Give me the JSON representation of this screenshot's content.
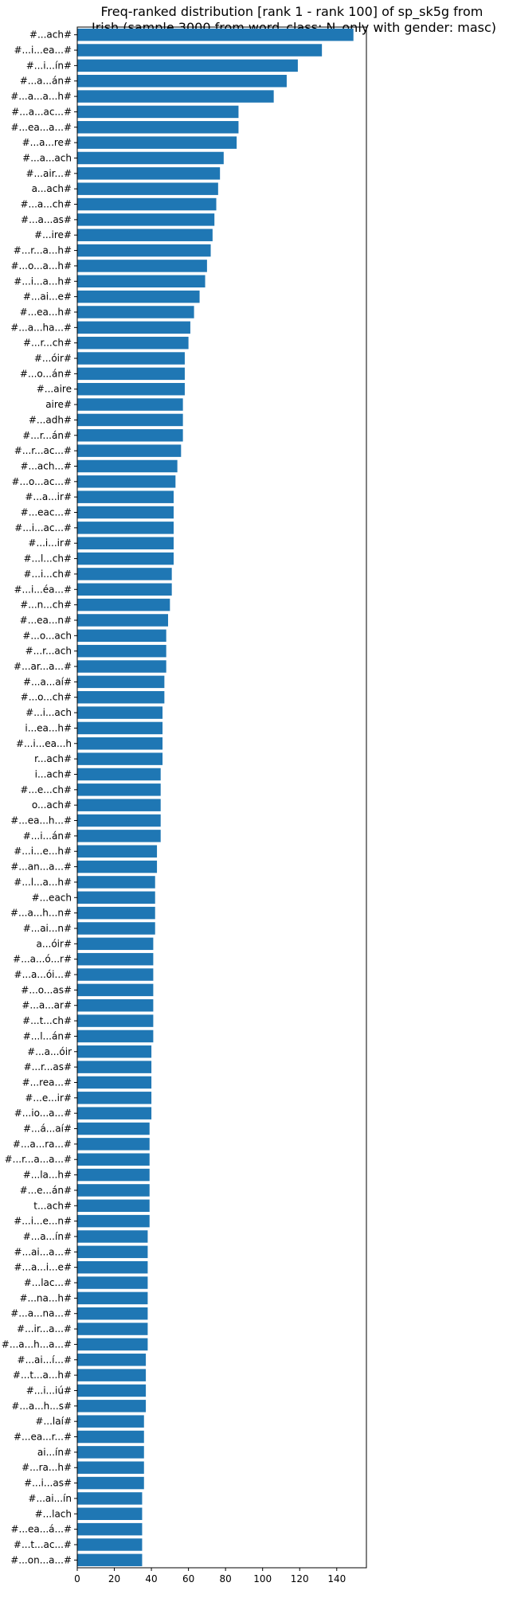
{
  "chart_data": {
    "type": "bar",
    "orientation": "horizontal",
    "title": "Freq-ranked distribution [rank 1 - rank 100] of sp_sk5g from Irish (sample 3000 from word_class: N_only with gender: masc)",
    "title_lines": [
      "Freq-ranked distribution [rank 1 - rank 100] of sp_sk5g from",
      "Irish (sample 3000 from word_class: N_only with gender: masc)"
    ],
    "xlabel": "",
    "ylabel": "",
    "xlim": [
      0,
      156
    ],
    "xticks": [
      0,
      20,
      40,
      60,
      80,
      100,
      120,
      140
    ],
    "grid": false,
    "bar_color": "#1f77b4",
    "categories": [
      "#...ach#",
      "#...i...ea...#",
      "#...i...ín#",
      "#...a...án#",
      "#...a...a...h#",
      "#...a...ac...#",
      "#...ea...a...#",
      "#...a...re#",
      "#...a...ach",
      "#...air...#",
      "a...ach#",
      "#...a...ch#",
      "#...a...as#",
      "#...ire#",
      "#...r...a...h#",
      "#...o...a...h#",
      "#...i...a...h#",
      "#...ai...e#",
      "#...ea...h#",
      "#...a...ha...#",
      "#...r...ch#",
      "#...óir#",
      "#...o...án#",
      "#...aire",
      "aire#",
      "#...adh#",
      "#...r...án#",
      "#...r...ac...#",
      "#...ach...#",
      "#...o...ac...#",
      "#...a...ir#",
      "#...eac...#",
      "#...i...ac...#",
      "#...i...ir#",
      "#...l...ch#",
      "#...i...ch#",
      "#...i...éa...#",
      "#...n...ch#",
      "#...ea...n#",
      "#...o...ach",
      "#...r...ach",
      "#...ar...a...#",
      "#...a...aí#",
      "#...o...ch#",
      "#...i...ach",
      "i...ea...h#",
      "#...i...ea...h",
      "r...ach#",
      "i...ach#",
      "#...e...ch#",
      "o...ach#",
      "#...ea...h...#",
      "#...i...án#",
      "#...i...e...h#",
      "#...an...a...#",
      "#...l...a...h#",
      "#...each",
      "#...a...h...n#",
      "#...ai...n#",
      "a...óir#",
      "#...a...ó...r#",
      "#...a...ói...#",
      "#...o...as#",
      "#...a...ar#",
      "#...t...ch#",
      "#...l...án#",
      "#...a...óir",
      "#...r...as#",
      "#...rea...#",
      "#...e...ir#",
      "#...io...a...#",
      "#...á...aí#",
      "#...a...ra...#",
      "#...r...a...a...#",
      "#...la...h#",
      "#...e...án#",
      "t...ach#",
      "#...i...e...n#",
      "#...a...ín#",
      "#...ai...a...#",
      "#...a...i...e#",
      "#...lac...#",
      "#...na...h#",
      "#...a...na...#",
      "#...ir...a...#",
      "#...a...h...a...#",
      "#...ai...í...#",
      "#...t...a...h#",
      "#...i...iú#",
      "#...a...h...s#",
      "#...laí#",
      "#...ea...r...#",
      "ai...ín#",
      "#...ra...h#",
      "#...i...as#",
      "#...ai...ín",
      "#...lach",
      "#...ea...á...#",
      "#...t...ac...#",
      "#...on...a...#"
    ],
    "values": [
      149,
      132,
      119,
      113,
      106,
      87,
      87,
      86,
      79,
      77,
      76,
      75,
      74,
      73,
      72,
      70,
      69,
      66,
      63,
      61,
      60,
      58,
      58,
      58,
      57,
      57,
      57,
      56,
      54,
      53,
      52,
      52,
      52,
      52,
      52,
      51,
      51,
      50,
      49,
      48,
      48,
      48,
      47,
      47,
      46,
      46,
      46,
      46,
      45,
      45,
      45,
      45,
      45,
      43,
      43,
      42,
      42,
      42,
      42,
      41,
      41,
      41,
      41,
      41,
      41,
      41,
      40,
      40,
      40,
      40,
      40,
      39,
      39,
      39,
      39,
      39,
      39,
      39,
      38,
      38,
      38,
      38,
      38,
      38,
      38,
      38,
      37,
      37,
      37,
      37,
      36,
      36,
      36,
      36,
      36,
      35,
      35,
      35,
      35,
      35
    ]
  }
}
